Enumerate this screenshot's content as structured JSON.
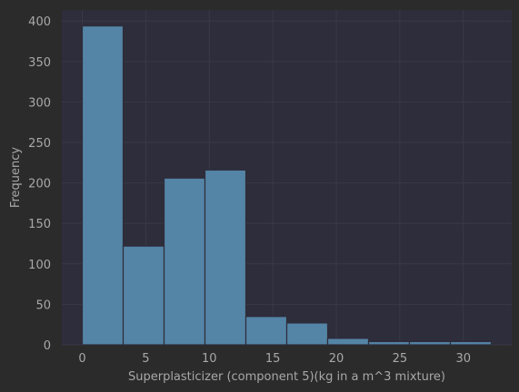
{
  "chart_data": {
    "type": "bar",
    "subtype": "histogram",
    "bins": [
      {
        "start": 0.0,
        "end": 3.22,
        "count": 394
      },
      {
        "start": 3.22,
        "end": 6.44,
        "count": 122
      },
      {
        "start": 6.44,
        "end": 9.66,
        "count": 206
      },
      {
        "start": 9.66,
        "end": 12.88,
        "count": 216
      },
      {
        "start": 12.88,
        "end": 16.1,
        "count": 35
      },
      {
        "start": 16.1,
        "end": 19.32,
        "count": 27
      },
      {
        "start": 19.32,
        "end": 22.54,
        "count": 8
      },
      {
        "start": 22.54,
        "end": 25.76,
        "count": 4
      },
      {
        "start": 25.76,
        "end": 28.98,
        "count": 4
      },
      {
        "start": 28.98,
        "end": 32.2,
        "count": 4
      }
    ],
    "xlabel": "Superplasticizer (component 5)(kg in a m^3 mixture)",
    "ylabel": "Frequency",
    "xlim": [
      -1.61,
      33.81
    ],
    "ylim": [
      0,
      413.7
    ],
    "xticks": [
      0,
      5,
      10,
      15,
      20,
      25,
      30
    ],
    "yticks": [
      0,
      50,
      100,
      150,
      200,
      250,
      300,
      350,
      400
    ],
    "grid": true,
    "colors": {
      "background": "#2b2b2b",
      "plot_background": "#2e2d3b",
      "bar_fill": "#5484a6",
      "bar_edge": "#2e2d3b",
      "grid": "#3a3948",
      "text": "#a8a8a8"
    }
  }
}
